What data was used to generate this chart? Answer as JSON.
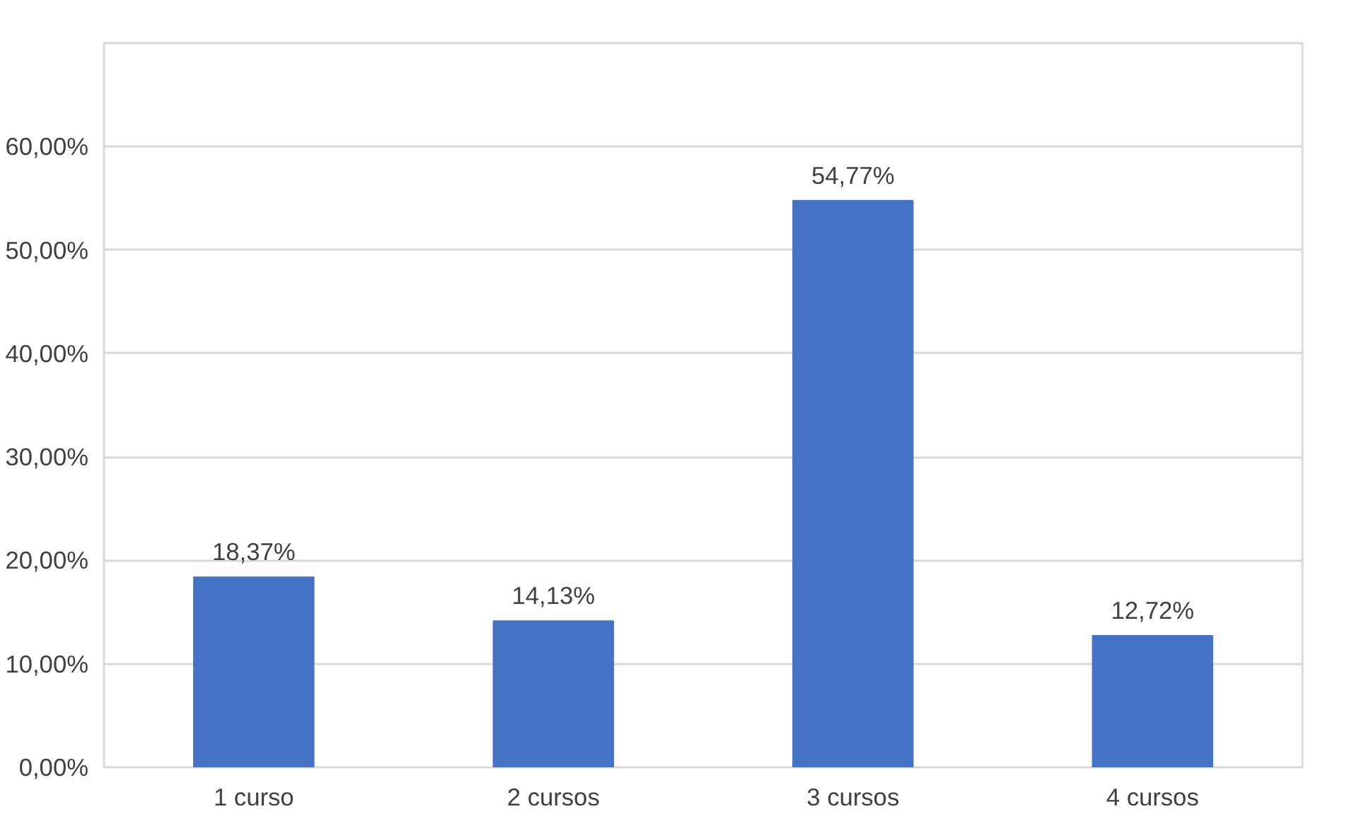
{
  "chart_data": {
    "type": "bar",
    "categories": [
      "1 curso",
      "2 cursos",
      "3 cursos",
      "4 cursos"
    ],
    "values": [
      18.37,
      14.13,
      54.77,
      12.72
    ],
    "value_labels": [
      "18,37%",
      "14,13%",
      "54,77%",
      "12,72%"
    ],
    "color": "#4472c4",
    "ylim": [
      0,
      70
    ],
    "yticks": [
      {
        "value": 0,
        "label": "0,00%"
      },
      {
        "value": 10,
        "label": "10,00%"
      },
      {
        "value": 20,
        "label": "20,00%"
      },
      {
        "value": 30,
        "label": "30,00%"
      },
      {
        "value": 40,
        "label": "40,00%"
      },
      {
        "value": 50,
        "label": "50,00%"
      },
      {
        "value": 60,
        "label": "60,00%"
      }
    ],
    "grid": "y"
  }
}
